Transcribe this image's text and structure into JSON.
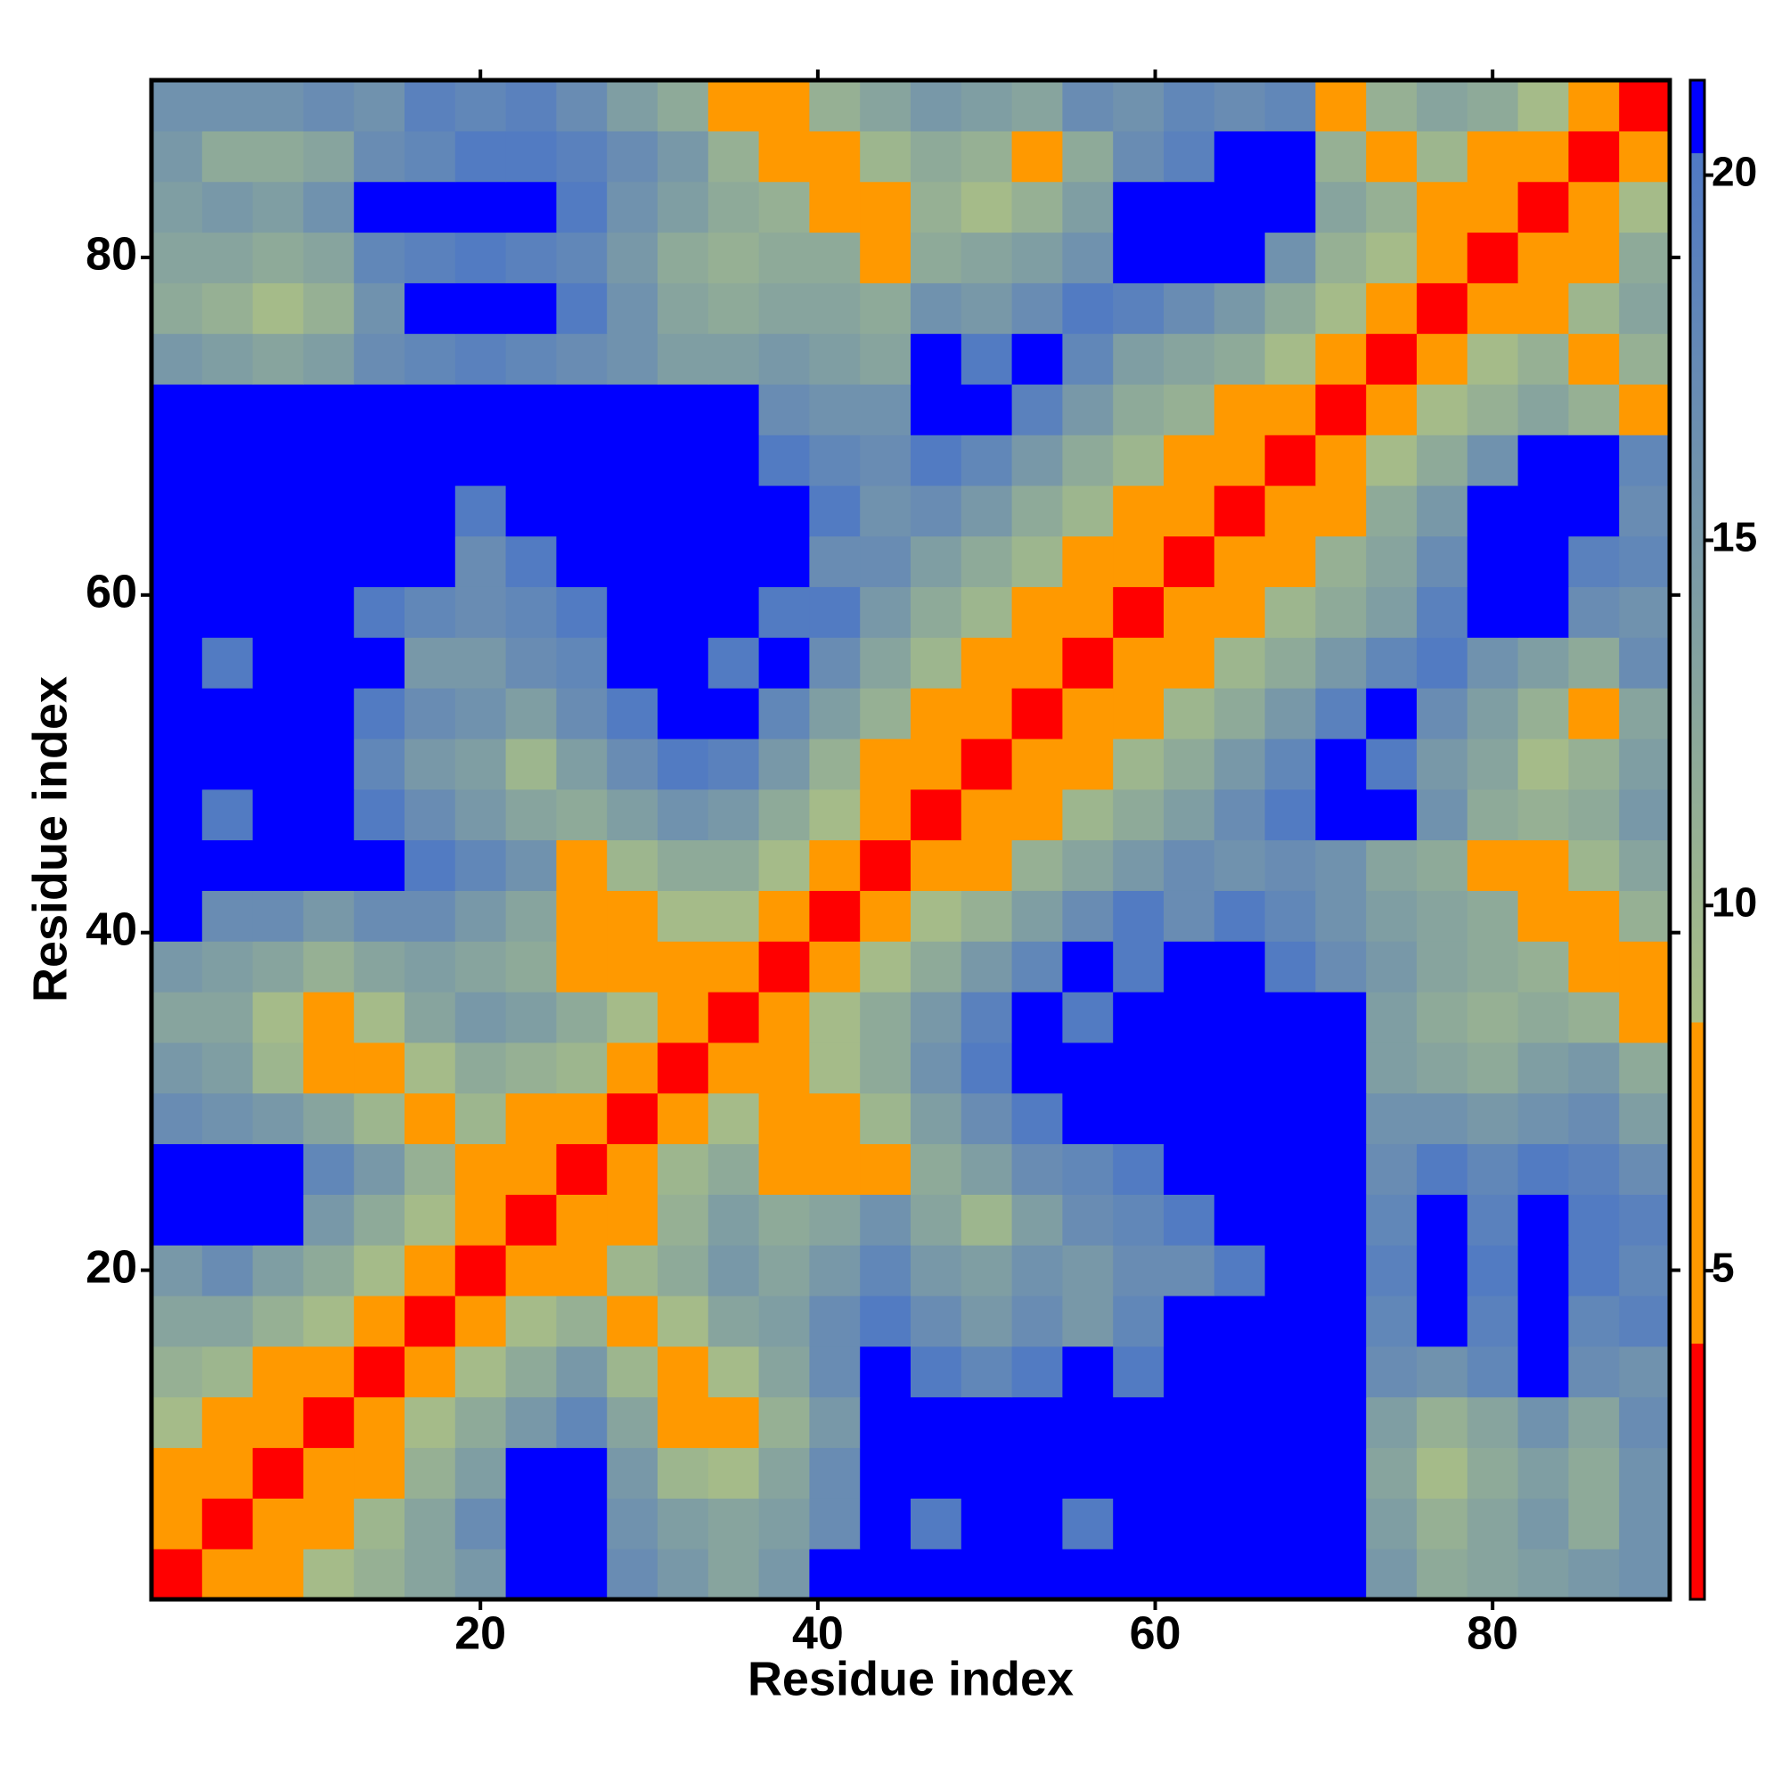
{
  "chart_data": {
    "type": "heatmap",
    "xlabel": "Residue index",
    "ylabel": "Residue index",
    "xlim": [
      0.5,
      90.5
    ],
    "ylim": [
      0.5,
      90.5
    ],
    "xticks": [
      20,
      40,
      60,
      80
    ],
    "yticks": [
      20,
      40,
      60,
      80
    ],
    "xbins": [
      0.5,
      3.5,
      6.5,
      9.5,
      12.5,
      15.5,
      18.5,
      21.5,
      24.5,
      27.5,
      30.5,
      33.5,
      36.5,
      39.5,
      42.5,
      45.5,
      48.5,
      51.5,
      54.5,
      57.5,
      60.5,
      63.5,
      66.5,
      69.5,
      72.5,
      75.5,
      78.5,
      81.5,
      84.5,
      87.5,
      90.5
    ],
    "ybins": [
      0.5,
      3.5,
      6.5,
      9.5,
      12.5,
      15.5,
      18.5,
      21.5,
      24.5,
      27.5,
      30.5,
      33.5,
      36.5,
      39.5,
      42.5,
      45.5,
      48.5,
      51.5,
      54.5,
      57.5,
      60.5,
      63.5,
      66.5,
      69.5,
      72.5,
      75.5,
      78.5,
      81.5,
      84.5,
      87.5,
      90.5
    ],
    "zlim": [
      0.5,
      21.3
    ],
    "zticks": [
      5,
      10,
      15,
      20
    ],
    "colorscale": [
      [
        0.5,
        "#ff0000"
      ],
      [
        4,
        "#ff0000"
      ],
      [
        4,
        "#ff9900"
      ],
      [
        8.4,
        "#ff9900"
      ],
      [
        8.4,
        "#a9bf86"
      ],
      [
        20.3,
        "#5079c4"
      ],
      [
        20.3,
        "#0000ff"
      ],
      [
        21.3,
        "#0000ff"
      ]
    ],
    "values": [
      [
        3,
        6,
        7,
        9,
        11,
        13,
        15,
        21,
        21,
        17,
        15,
        13,
        15,
        21,
        21,
        21,
        21,
        21,
        21,
        21,
        21,
        21,
        21,
        21,
        15,
        12,
        13,
        14,
        15,
        16
      ],
      [
        6,
        3,
        6,
        7,
        10,
        13,
        17,
        21,
        21,
        16,
        14,
        13,
        14,
        17,
        21,
        20,
        21,
        21,
        20,
        21,
        21,
        21,
        21,
        21,
        14,
        11,
        13,
        15,
        12,
        16
      ],
      [
        7,
        6,
        3,
        6,
        8,
        11,
        14,
        21,
        21,
        15,
        10,
        9,
        13,
        17,
        21,
        21,
        21,
        21,
        21,
        21,
        21,
        21,
        21,
        21,
        13,
        9,
        12,
        14,
        12,
        16
      ],
      [
        9,
        7,
        6,
        3,
        6,
        9,
        12,
        15,
        18,
        13,
        8,
        6,
        11,
        15,
        21,
        21,
        21,
        21,
        21,
        21,
        21,
        21,
        21,
        21,
        14,
        11,
        13,
        16,
        13,
        17
      ],
      [
        11,
        10,
        8,
        6,
        3,
        6,
        9,
        12,
        15,
        10,
        6,
        9,
        13,
        17,
        21,
        20,
        18,
        20,
        21,
        20,
        21,
        21,
        21,
        21,
        17,
        16,
        18,
        21,
        17,
        16
      ],
      [
        13,
        13,
        11,
        9,
        6,
        3,
        6,
        9,
        11,
        6,
        9,
        13,
        14,
        17,
        20,
        17,
        15,
        17,
        15,
        18,
        21,
        21,
        21,
        21,
        18,
        21,
        19,
        21,
        18,
        19
      ],
      [
        15,
        17,
        14,
        12,
        9,
        6,
        3,
        6,
        6,
        10,
        12,
        15,
        13,
        15,
        18,
        15,
        14,
        16,
        15,
        17,
        17,
        20,
        21,
        21,
        19,
        21,
        20,
        21,
        20,
        18
      ],
      [
        21,
        21,
        21,
        15,
        12,
        9,
        6,
        3,
        6,
        7,
        11,
        14,
        12,
        13,
        16,
        13,
        10,
        14,
        17,
        18,
        20,
        21,
        21,
        21,
        18,
        21,
        19,
        21,
        20,
        19
      ],
      [
        21,
        21,
        21,
        18,
        15,
        11,
        6,
        6,
        3,
        6,
        10,
        12,
        8,
        6,
        6,
        12,
        14,
        17,
        18,
        20,
        21,
        21,
        21,
        21,
        17,
        20,
        18,
        20,
        19,
        17
      ],
      [
        17,
        16,
        15,
        13,
        10,
        6,
        10,
        7,
        6,
        3,
        6,
        9,
        7,
        6,
        10,
        14,
        17,
        20,
        21,
        21,
        21,
        21,
        21,
        21,
        16,
        16,
        15,
        16,
        17,
        14
      ],
      [
        15,
        14,
        10,
        8,
        6,
        9,
        12,
        11,
        10,
        6,
        3,
        6,
        6,
        9,
        12,
        16,
        20,
        21,
        21,
        21,
        21,
        21,
        21,
        21,
        14,
        13,
        12,
        14,
        15,
        12
      ],
      [
        13,
        13,
        9,
        6,
        9,
        13,
        15,
        14,
        12,
        9,
        6,
        3,
        6,
        9,
        12,
        15,
        19,
        21,
        20,
        21,
        21,
        21,
        21,
        21,
        14,
        12,
        11,
        12,
        11,
        7
      ],
      [
        15,
        14,
        13,
        11,
        13,
        14,
        13,
        12,
        8,
        7,
        6,
        6,
        3,
        6,
        9,
        12,
        15,
        18,
        21,
        20,
        21,
        21,
        20,
        17,
        15,
        13,
        12,
        11,
        8,
        6
      ],
      [
        21,
        17,
        17,
        15,
        17,
        17,
        15,
        13,
        6,
        6,
        9,
        9,
        6,
        3,
        6,
        9,
        11,
        14,
        17,
        20,
        17,
        20,
        18,
        16,
        14,
        13,
        12,
        7,
        6,
        11
      ],
      [
        21,
        21,
        21,
        21,
        21,
        20,
        18,
        16,
        6,
        10,
        12,
        12,
        9,
        6,
        3,
        6,
        8,
        11,
        13,
        15,
        17,
        16,
        17,
        16,
        13,
        12,
        8,
        6,
        10,
        13
      ],
      [
        21,
        20,
        21,
        21,
        20,
        17,
        15,
        13,
        12,
        14,
        16,
        15,
        12,
        9,
        6,
        3,
        6,
        8,
        10,
        12,
        14,
        17,
        20,
        21,
        21,
        16,
        12,
        11,
        12,
        15
      ],
      [
        21,
        21,
        21,
        21,
        18,
        15,
        14,
        10,
        14,
        17,
        20,
        19,
        15,
        11,
        8,
        6,
        3,
        6,
        8,
        10,
        12,
        15,
        18,
        21,
        20,
        15,
        13,
        9,
        11,
        14
      ],
      [
        21,
        21,
        21,
        21,
        20,
        17,
        16,
        14,
        17,
        20,
        21,
        21,
        18,
        14,
        11,
        8,
        6,
        3,
        6,
        8,
        10,
        12,
        15,
        19,
        21,
        17,
        14,
        11,
        7,
        13
      ],
      [
        21,
        20,
        21,
        21,
        21,
        15,
        15,
        17,
        18,
        21,
        21,
        20,
        21,
        17,
        13,
        10,
        8,
        6,
        3,
        6,
        8,
        10,
        12,
        15,
        18,
        20,
        16,
        14,
        12,
        17
      ],
      [
        21,
        21,
        21,
        21,
        20,
        18,
        17,
        18,
        20,
        21,
        21,
        21,
        20,
        20,
        15,
        12,
        10,
        8,
        6,
        3,
        6,
        8,
        10,
        12,
        14,
        19,
        21,
        21,
        17,
        16
      ],
      [
        21,
        21,
        21,
        21,
        21,
        21,
        17,
        20,
        21,
        21,
        21,
        21,
        21,
        17,
        17,
        14,
        12,
        10,
        8,
        6,
        3,
        6,
        8,
        11,
        13,
        17,
        21,
        21,
        19,
        18
      ],
      [
        21,
        21,
        21,
        21,
        21,
        21,
        20,
        21,
        21,
        21,
        21,
        21,
        21,
        20,
        16,
        17,
        15,
        12,
        10,
        8,
        6,
        3,
        6,
        8,
        12,
        15,
        21,
        21,
        21,
        17
      ],
      [
        21,
        21,
        21,
        21,
        21,
        21,
        21,
        21,
        21,
        21,
        21,
        21,
        20,
        18,
        17,
        20,
        18,
        15,
        12,
        10,
        8,
        6,
        3,
        6,
        9,
        12,
        16,
        21,
        21,
        18
      ],
      [
        21,
        21,
        21,
        21,
        21,
        21,
        21,
        21,
        21,
        21,
        21,
        21,
        17,
        16,
        16,
        21,
        21,
        19,
        15,
        12,
        11,
        8,
        6,
        3,
        6,
        9,
        11,
        13,
        11,
        7
      ],
      [
        15,
        14,
        13,
        14,
        17,
        18,
        19,
        18,
        17,
        16,
        14,
        14,
        15,
        14,
        13,
        21,
        20,
        21,
        18,
        14,
        13,
        12,
        9,
        6,
        3,
        6,
        9,
        11,
        7,
        11
      ],
      [
        12,
        11,
        9,
        11,
        16,
        21,
        21,
        21,
        20,
        16,
        13,
        12,
        13,
        13,
        12,
        16,
        15,
        17,
        20,
        19,
        17,
        15,
        12,
        9,
        6,
        3,
        6,
        6,
        10,
        13
      ],
      [
        13,
        13,
        12,
        13,
        18,
        19,
        20,
        19,
        18,
        15,
        12,
        11,
        12,
        12,
        8,
        12,
        13,
        14,
        16,
        21,
        21,
        21,
        16,
        11,
        9,
        6,
        3,
        6,
        8,
        12
      ],
      [
        14,
        15,
        14,
        16,
        21,
        21,
        21,
        21,
        20,
        16,
        14,
        12,
        11,
        7,
        6,
        11,
        9,
        11,
        14,
        21,
        21,
        21,
        21,
        13,
        11,
        6,
        6,
        3,
        6,
        9
      ],
      [
        15,
        12,
        12,
        13,
        17,
        18,
        20,
        20,
        19,
        17,
        15,
        11,
        8,
        6,
        10,
        12,
        11,
        7,
        12,
        17,
        19,
        21,
        21,
        11,
        7,
        10,
        8,
        6,
        3,
        6
      ],
      [
        16,
        16,
        16,
        17,
        16,
        19,
        18,
        19,
        17,
        14,
        12,
        7,
        6,
        11,
        13,
        15,
        14,
        13,
        17,
        16,
        18,
        17,
        18,
        7,
        11,
        13,
        12,
        9,
        6,
        3
      ]
    ]
  }
}
